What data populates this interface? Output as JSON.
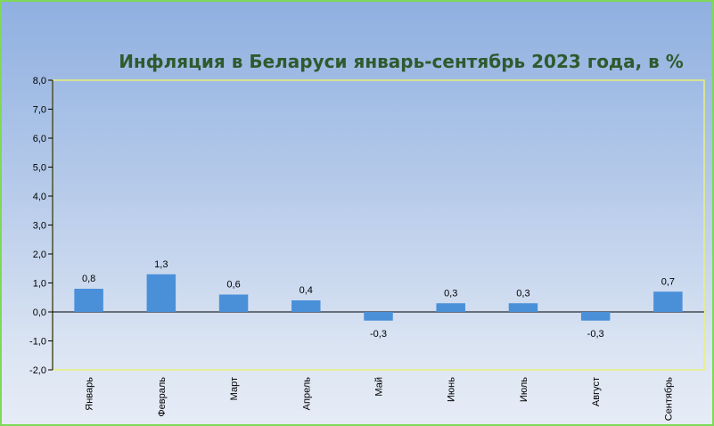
{
  "chart_data": {
    "type": "bar",
    "title": "Инфляция в Беларуси январь-сентябрь 2023 года, в %",
    "categories": [
      "Январь",
      "Февраль",
      "Март",
      "Апрель",
      "Май",
      "Июнь",
      "Июль",
      "Август",
      "Сентябрь"
    ],
    "values": [
      0.8,
      1.3,
      0.6,
      0.4,
      -0.3,
      0.3,
      0.3,
      -0.3,
      0.7
    ],
    "data_labels": [
      "0,8",
      "1,3",
      "0,6",
      "0,4",
      "-0,3",
      "0,3",
      "0,3",
      "-0,3",
      "0,7"
    ],
    "ylim": [
      -2,
      8
    ],
    "y_ticks": [
      8,
      7,
      6,
      5,
      4,
      3,
      2,
      1,
      0,
      -1,
      -2
    ],
    "y_tick_labels": [
      "8,0",
      "7,0",
      "6,0",
      "5,0",
      "4,0",
      "3,0",
      "2,0",
      "1,0",
      "0,0",
      "-1,0",
      "-2,0"
    ],
    "xlabel": "",
    "ylabel": "",
    "grid": false,
    "legend": "none",
    "colors": {
      "bar": "#4a90d9",
      "title": "#2e5a2e",
      "plot_border": "#e8f07a",
      "frame_border": "#7ed957"
    }
  }
}
